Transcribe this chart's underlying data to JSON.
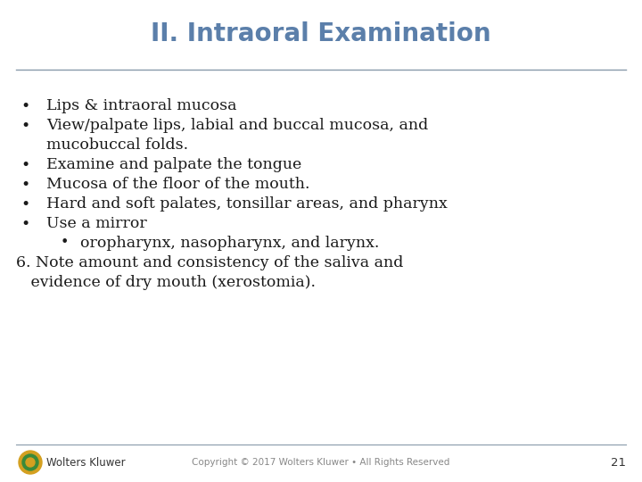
{
  "title": "II. Intraoral Examination",
  "title_color": "#5b7faa",
  "title_fontsize": 20,
  "title_fontweight": "bold",
  "background_color": "#ffffff",
  "separator_color": "#8899aa",
  "body_color": "#1a1a1a",
  "body_fontsize": 12.5,
  "bullet_items": [
    {
      "level": 1,
      "lines": [
        "Lips & intraoral mucosa"
      ]
    },
    {
      "level": 1,
      "lines": [
        "View/palpate lips, labial and buccal mucosa, and",
        "mucobuccal folds."
      ]
    },
    {
      "level": 1,
      "lines": [
        "Examine and palpate the tongue"
      ]
    },
    {
      "level": 1,
      "lines": [
        "Mucosa of the floor of the mouth."
      ]
    },
    {
      "level": 1,
      "lines": [
        "Hard and soft palates, tonsillar areas, and pharynx"
      ]
    },
    {
      "level": 1,
      "lines": [
        "Use a mirror"
      ]
    },
    {
      "level": 2,
      "lines": [
        "oropharynx, nasopharynx, and larynx."
      ]
    }
  ],
  "numbered_lines": [
    "6. Note amount and consistency of the saliva and",
    "   evidence of dry mouth (xerostomia)."
  ],
  "footer_text": "Copyright © 2017 Wolters Kluwer • All Rights Reserved",
  "footer_page": "21",
  "footer_logo_text": "Wolters Kluwer",
  "footer_color": "#888888",
  "footer_fontsize": 7.5,
  "logo_outer_color": "#d4a020",
  "logo_middle_color": "#3a8a3a",
  "logo_inner_color": "#d4a020"
}
